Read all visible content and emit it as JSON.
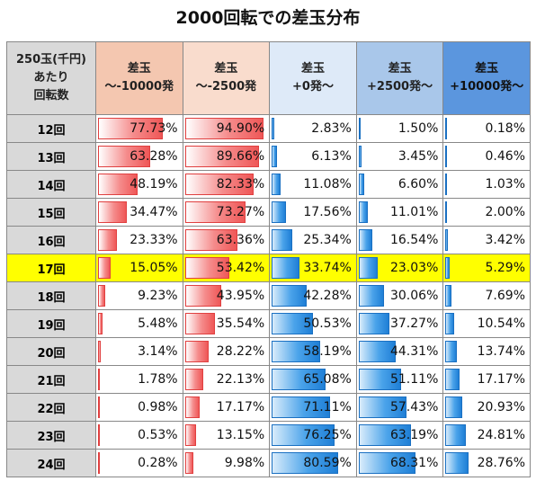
{
  "title": "2000回転での差玉分布",
  "header": {
    "row_header": [
      "250玉(千円)",
      "あたり",
      "回転数"
    ],
    "columns": [
      [
        "差玉",
        "～-10000発"
      ],
      [
        "差玉",
        "～-2500発"
      ],
      [
        "差玉",
        "+0発～"
      ],
      [
        "差玉",
        "+2500発～"
      ],
      [
        "差玉",
        "+10000発～"
      ]
    ]
  },
  "colors": {
    "negative_bar": "#ef5757",
    "positive_bar": "#1f7fd6",
    "highlight": "#ffff00",
    "row_header_bg": "#d9d9d9"
  },
  "highlight_row": "17回",
  "chart_data": {
    "type": "table",
    "title": "2000回転での差玉分布",
    "categories": [
      "12回",
      "13回",
      "14回",
      "15回",
      "16回",
      "17回",
      "18回",
      "19回",
      "20回",
      "21回",
      "22回",
      "23回",
      "24回"
    ],
    "series": [
      {
        "name": "差玉 ～-10000発",
        "values": [
          77.73,
          63.28,
          48.19,
          34.47,
          23.33,
          15.05,
          9.23,
          5.48,
          3.14,
          1.78,
          0.98,
          0.53,
          0.28
        ]
      },
      {
        "name": "差玉 ～-2500発",
        "values": [
          94.9,
          89.66,
          82.33,
          73.27,
          63.36,
          53.42,
          43.95,
          35.54,
          28.22,
          22.13,
          17.17,
          13.15,
          9.98
        ]
      },
      {
        "name": "差玉 +0発～",
        "values": [
          2.83,
          6.13,
          11.08,
          17.56,
          25.34,
          33.74,
          42.28,
          50.53,
          58.19,
          65.08,
          71.11,
          76.25,
          80.59
        ]
      },
      {
        "name": "差玉 +2500発～",
        "values": [
          1.5,
          3.45,
          6.6,
          11.01,
          16.54,
          23.03,
          30.06,
          37.27,
          44.31,
          51.11,
          57.43,
          63.19,
          68.31
        ]
      },
      {
        "name": "差玉 +10000発～",
        "values": [
          0.18,
          0.46,
          1.03,
          2.0,
          3.42,
          5.29,
          7.69,
          10.54,
          13.74,
          17.17,
          20.93,
          24.81,
          28.76
        ]
      }
    ],
    "unit": "%"
  }
}
